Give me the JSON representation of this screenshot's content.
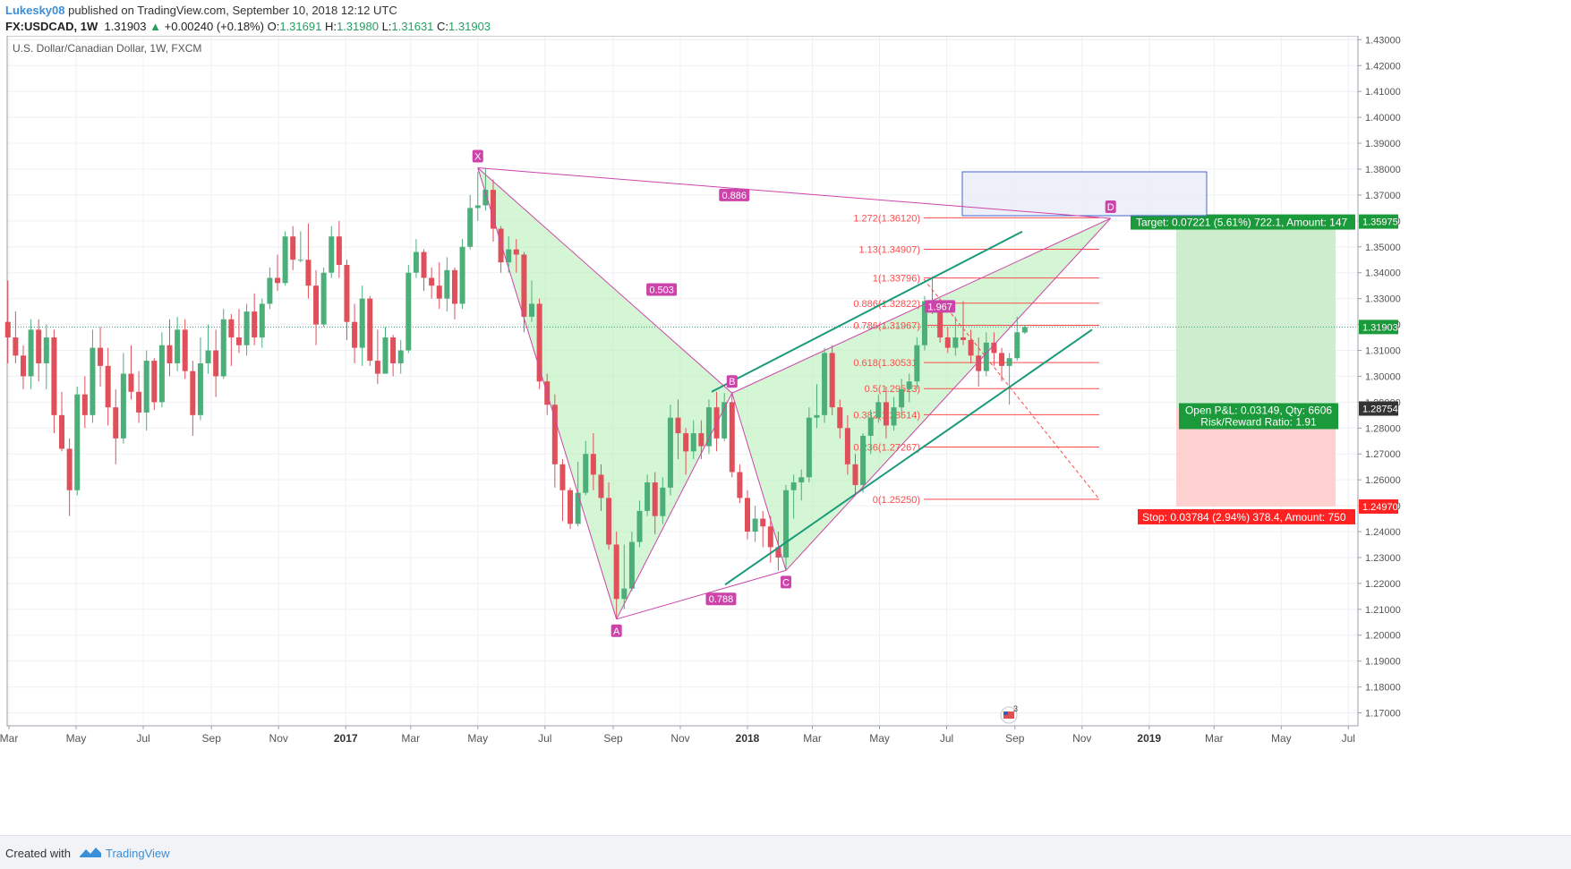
{
  "header": {
    "user": "Lukesky08",
    "published": "published on TradingView.com, September 10, 2018 12:12 UTC",
    "symbol": "FX:USDCAD, 1W",
    "last": "1.31903",
    "change": "+0.00240 (+0.18%)",
    "o_label": "O:",
    "o": "1.31691",
    "h_label": "H:",
    "h": "1.31980",
    "l_label": "L:",
    "l": "1.31631",
    "c_label": "C:",
    "c": "1.31903"
  },
  "footer": {
    "created_with": "Created with",
    "brand": "TradingView"
  },
  "colors": {
    "up": "#4caf7a",
    "down": "#e0505a",
    "pattern": "#cc44aa",
    "fib": "#ff4a4a",
    "channel": "#1a9a7a",
    "target": "#1a9a3a",
    "stop": "#ff2222"
  },
  "chart_data": {
    "type": "candlestick",
    "title": "U.S. Dollar/Canadian Dollar, 1W, FXCM",
    "ylim": [
      1.165,
      1.4315
    ],
    "y_ticks": [
      "1.43000",
      "1.42000",
      "1.41000",
      "1.40000",
      "1.39000",
      "1.38000",
      "1.37000",
      "1.36000",
      "1.35000",
      "1.34000",
      "1.33000",
      "1.32000",
      "1.31000",
      "1.30000",
      "1.29000",
      "1.28000",
      "1.27000",
      "1.26000",
      "1.25000",
      "1.24000",
      "1.23000",
      "1.22000",
      "1.21000",
      "1.20000",
      "1.19000",
      "1.18000",
      "1.17000"
    ],
    "x_ticks": [
      {
        "label": "Mar",
        "x": "2016-03"
      },
      {
        "label": "May",
        "x": "2016-05"
      },
      {
        "label": "Jul",
        "x": "2016-07"
      },
      {
        "label": "Sep",
        "x": "2016-09"
      },
      {
        "label": "Nov",
        "x": "2016-11"
      },
      {
        "label": "2017",
        "x": "2017-01"
      },
      {
        "label": "Mar",
        "x": "2017-03"
      },
      {
        "label": "May",
        "x": "2017-05"
      },
      {
        "label": "Jul",
        "x": "2017-07"
      },
      {
        "label": "Sep",
        "x": "2017-09"
      },
      {
        "label": "Nov",
        "x": "2017-11"
      },
      {
        "label": "2018",
        "x": "2018-01"
      },
      {
        "label": "Mar",
        "x": "2018-03"
      },
      {
        "label": "May",
        "x": "2018-05"
      },
      {
        "label": "Jul",
        "x": "2018-07"
      },
      {
        "label": "Sep",
        "x": "2018-09"
      },
      {
        "label": "Nov",
        "x": "2018-11"
      },
      {
        "label": "2019",
        "x": "2019-01"
      },
      {
        "label": "Mar",
        "x": "2019-03"
      },
      {
        "label": "May",
        "x": "2019-05"
      },
      {
        "label": "Jul",
        "x": "2019-07"
      }
    ],
    "price_labels": [
      {
        "value": 1.35975,
        "text": "1.35975",
        "color": "#1a9a3a"
      },
      {
        "value": 1.31903,
        "text": "1.31903",
        "color": "#1a9a3a"
      },
      {
        "value": 1.28754,
        "text": "1.28754",
        "color": "#333333"
      },
      {
        "value": 1.2497,
        "text": "1.24970",
        "color": "#ff2222"
      }
    ],
    "last_price": 1.31903,
    "pattern": {
      "points": [
        {
          "label": "X",
          "date": "2017-05-01",
          "price": 1.3805
        },
        {
          "label": "A",
          "date": "2017-09-04",
          "price": 1.2062
        },
        {
          "label": "B",
          "date": "2017-12-18",
          "price": 1.2935
        },
        {
          "label": "C",
          "date": "2018-02-05",
          "price": 1.225
        },
        {
          "label": "D",
          "date": "2018-11-27",
          "price": 1.361
        }
      ],
      "ratios": [
        {
          "text": "0.886",
          "date": "2017-12-20",
          "price": 1.37
        },
        {
          "text": "0.503",
          "date": "2017-10-15",
          "price": 1.3335
        },
        {
          "text": "0.788",
          "date": "2017-12-08",
          "price": 1.214
        },
        {
          "text": "1.967",
          "date": "2018-06-25",
          "price": 1.327
        }
      ]
    },
    "fib_levels": [
      {
        "text": "1.272(1.36120)",
        "price": 1.3612
      },
      {
        "text": "1.13(1.34907)",
        "price": 1.34907
      },
      {
        "text": "1(1.33796)",
        "price": 1.33796
      },
      {
        "text": "0.886(1.32822)",
        "price": 1.32822
      },
      {
        "text": "0.786(1.31967)",
        "price": 1.31967
      },
      {
        "text": "0.618(1.30531)",
        "price": 1.30531
      },
      {
        "text": "0.5(1.29523)",
        "price": 1.29523
      },
      {
        "text": "0.382(1.28514)",
        "price": 1.28514
      },
      {
        "text": "0.236(1.27267)",
        "price": 1.27267
      },
      {
        "text": "0(1.25250)",
        "price": 1.2525
      }
    ],
    "position": {
      "entry": 1.28754,
      "target": 1.35975,
      "stop": 1.2497,
      "target_text": "Target: 0.07221 (5.61%) 722.1, Amount: 147",
      "stop_text": "Stop: 0.03784 (2.94%) 378.4, Amount: 750",
      "pnl_text": "Open P&L: 0.03149, Qty: 6606",
      "rr_text": "Risk/Reward Ratio: 1.91"
    },
    "event_badge": "3",
    "candles": [
      [
        "2016-02-29",
        1.321,
        1.337,
        1.305,
        1.315
      ],
      [
        "2016-03-07",
        1.315,
        1.325,
        1.305,
        1.308
      ],
      [
        "2016-03-14",
        1.308,
        1.312,
        1.295,
        1.3
      ],
      [
        "2016-03-21",
        1.3,
        1.322,
        1.295,
        1.318
      ],
      [
        "2016-03-28",
        1.318,
        1.322,
        1.298,
        1.305
      ],
      [
        "2016-04-04",
        1.305,
        1.32,
        1.295,
        1.315
      ],
      [
        "2016-04-11",
        1.315,
        1.318,
        1.278,
        1.285
      ],
      [
        "2016-04-18",
        1.285,
        1.294,
        1.271,
        1.272
      ],
      [
        "2016-04-25",
        1.272,
        1.276,
        1.246,
        1.256
      ],
      [
        "2016-05-02",
        1.256,
        1.296,
        1.254,
        1.293
      ],
      [
        "2016-05-09",
        1.293,
        1.3,
        1.28,
        1.285
      ],
      [
        "2016-05-16",
        1.285,
        1.318,
        1.282,
        1.311
      ],
      [
        "2016-05-23",
        1.311,
        1.319,
        1.296,
        1.304
      ],
      [
        "2016-05-30",
        1.304,
        1.311,
        1.281,
        1.288
      ],
      [
        "2016-06-06",
        1.288,
        1.295,
        1.266,
        1.276
      ],
      [
        "2016-06-13",
        1.276,
        1.309,
        1.274,
        1.301
      ],
      [
        "2016-06-20",
        1.301,
        1.312,
        1.291,
        1.294
      ],
      [
        "2016-06-27",
        1.294,
        1.302,
        1.282,
        1.286
      ],
      [
        "2016-07-04",
        1.286,
        1.31,
        1.279,
        1.306
      ],
      [
        "2016-07-11",
        1.306,
        1.307,
        1.287,
        1.29
      ],
      [
        "2016-07-18",
        1.29,
        1.317,
        1.288,
        1.312
      ],
      [
        "2016-07-25",
        1.312,
        1.322,
        1.3,
        1.305
      ],
      [
        "2016-08-01",
        1.305,
        1.323,
        1.302,
        1.318
      ],
      [
        "2016-08-08",
        1.318,
        1.322,
        1.299,
        1.302
      ],
      [
        "2016-08-15",
        1.302,
        1.306,
        1.277,
        1.285
      ],
      [
        "2016-08-22",
        1.285,
        1.315,
        1.283,
        1.305
      ],
      [
        "2016-08-29",
        1.305,
        1.32,
        1.301,
        1.31
      ],
      [
        "2016-09-05",
        1.31,
        1.318,
        1.292,
        1.3
      ],
      [
        "2016-09-12",
        1.3,
        1.326,
        1.299,
        1.322
      ],
      [
        "2016-09-19",
        1.322,
        1.324,
        1.304,
        1.315
      ],
      [
        "2016-09-26",
        1.315,
        1.326,
        1.309,
        1.312
      ],
      [
        "2016-10-03",
        1.312,
        1.328,
        1.308,
        1.325
      ],
      [
        "2016-10-10",
        1.325,
        1.332,
        1.312,
        1.315
      ],
      [
        "2016-10-17",
        1.315,
        1.33,
        1.311,
        1.328
      ],
      [
        "2016-10-24",
        1.328,
        1.342,
        1.326,
        1.338
      ],
      [
        "2016-10-31",
        1.338,
        1.347,
        1.333,
        1.336
      ],
      [
        "2016-11-07",
        1.336,
        1.356,
        1.335,
        1.354
      ],
      [
        "2016-11-14",
        1.354,
        1.358,
        1.341,
        1.345
      ],
      [
        "2016-11-21",
        1.345,
        1.356,
        1.344,
        1.345
      ],
      [
        "2016-11-28",
        1.345,
        1.359,
        1.33,
        1.335
      ],
      [
        "2016-12-05",
        1.335,
        1.341,
        1.312,
        1.32
      ],
      [
        "2016-12-12",
        1.32,
        1.342,
        1.319,
        1.34
      ],
      [
        "2016-12-19",
        1.34,
        1.358,
        1.338,
        1.354
      ],
      [
        "2016-12-26",
        1.354,
        1.36,
        1.338,
        1.343
      ],
      [
        "2017-01-02",
        1.343,
        1.345,
        1.314,
        1.321
      ],
      [
        "2017-01-09",
        1.321,
        1.328,
        1.305,
        1.311
      ],
      [
        "2017-01-16",
        1.311,
        1.335,
        1.304,
        1.33
      ],
      [
        "2017-01-23",
        1.33,
        1.331,
        1.304,
        1.306
      ],
      [
        "2017-01-30",
        1.306,
        1.318,
        1.297,
        1.301
      ],
      [
        "2017-02-06",
        1.301,
        1.319,
        1.301,
        1.315
      ],
      [
        "2017-02-13",
        1.315,
        1.316,
        1.3,
        1.305
      ],
      [
        "2017-02-20",
        1.305,
        1.314,
        1.301,
        1.31
      ],
      [
        "2017-02-27",
        1.31,
        1.343,
        1.309,
        1.34
      ],
      [
        "2017-03-06",
        1.34,
        1.353,
        1.338,
        1.348
      ],
      [
        "2017-03-13",
        1.348,
        1.349,
        1.333,
        1.338
      ],
      [
        "2017-03-20",
        1.338,
        1.342,
        1.33,
        1.335
      ],
      [
        "2017-03-27",
        1.335,
        1.344,
        1.326,
        1.33
      ],
      [
        "2017-04-03",
        1.33,
        1.346,
        1.325,
        1.341
      ],
      [
        "2017-04-10",
        1.341,
        1.342,
        1.322,
        1.328
      ],
      [
        "2017-04-17",
        1.328,
        1.353,
        1.326,
        1.35
      ],
      [
        "2017-04-24",
        1.35,
        1.37,
        1.349,
        1.365
      ],
      [
        "2017-05-01",
        1.365,
        1.379,
        1.36,
        1.366
      ],
      [
        "2017-05-08",
        1.366,
        1.3805,
        1.364,
        1.372
      ],
      [
        "2017-05-15",
        1.372,
        1.376,
        1.352,
        1.357
      ],
      [
        "2017-05-22",
        1.357,
        1.358,
        1.34,
        1.344
      ],
      [
        "2017-05-29",
        1.344,
        1.354,
        1.34,
        1.349
      ],
      [
        "2017-06-05",
        1.349,
        1.353,
        1.34,
        1.347
      ],
      [
        "2017-06-12",
        1.347,
        1.348,
        1.317,
        1.323
      ],
      [
        "2017-06-19",
        1.323,
        1.337,
        1.321,
        1.328
      ],
      [
        "2017-06-26",
        1.328,
        1.33,
        1.295,
        1.298
      ],
      [
        "2017-07-03",
        1.298,
        1.301,
        1.285,
        1.289
      ],
      [
        "2017-07-10",
        1.289,
        1.293,
        1.257,
        1.266
      ],
      [
        "2017-07-17",
        1.266,
        1.268,
        1.244,
        1.256
      ],
      [
        "2017-07-24",
        1.256,
        1.257,
        1.241,
        1.243
      ],
      [
        "2017-07-31",
        1.243,
        1.267,
        1.242,
        1.255
      ],
      [
        "2017-08-07",
        1.255,
        1.275,
        1.254,
        1.27
      ],
      [
        "2017-08-14",
        1.27,
        1.278,
        1.256,
        1.262
      ],
      [
        "2017-08-21",
        1.262,
        1.266,
        1.248,
        1.253
      ],
      [
        "2017-08-28",
        1.253,
        1.259,
        1.233,
        1.235
      ],
      [
        "2017-09-04",
        1.235,
        1.24,
        1.2062,
        1.214
      ],
      [
        "2017-09-11",
        1.214,
        1.235,
        1.21,
        1.218
      ],
      [
        "2017-09-18",
        1.218,
        1.24,
        1.217,
        1.236
      ],
      [
        "2017-09-25",
        1.236,
        1.252,
        1.234,
        1.248
      ],
      [
        "2017-10-02",
        1.248,
        1.262,
        1.246,
        1.259
      ],
      [
        "2017-10-09",
        1.259,
        1.263,
        1.239,
        1.246
      ],
      [
        "2017-10-16",
        1.246,
        1.261,
        1.243,
        1.257
      ],
      [
        "2017-10-23",
        1.257,
        1.289,
        1.254,
        1.284
      ],
      [
        "2017-10-30",
        1.284,
        1.291,
        1.268,
        1.278
      ],
      [
        "2017-11-06",
        1.278,
        1.28,
        1.262,
        1.271
      ],
      [
        "2017-11-13",
        1.271,
        1.283,
        1.268,
        1.278
      ],
      [
        "2017-11-20",
        1.278,
        1.283,
        1.268,
        1.273
      ],
      [
        "2017-11-27",
        1.273,
        1.291,
        1.27,
        1.288
      ],
      [
        "2017-12-04",
        1.288,
        1.294,
        1.271,
        1.276
      ],
      [
        "2017-12-11",
        1.276,
        1.2935,
        1.275,
        1.29
      ],
      [
        "2017-12-18",
        1.29,
        1.293,
        1.261,
        1.263
      ],
      [
        "2017-12-25",
        1.263,
        1.266,
        1.251,
        1.253
      ],
      [
        "2018-01-01",
        1.253,
        1.256,
        1.237,
        1.24
      ],
      [
        "2018-01-08",
        1.24,
        1.25,
        1.236,
        1.245
      ],
      [
        "2018-01-15",
        1.245,
        1.248,
        1.234,
        1.242
      ],
      [
        "2018-01-22",
        1.242,
        1.246,
        1.228,
        1.234
      ],
      [
        "2018-01-29",
        1.234,
        1.24,
        1.225,
        1.23
      ],
      [
        "2018-02-05",
        1.23,
        1.258,
        1.225,
        1.256
      ],
      [
        "2018-02-12",
        1.256,
        1.262,
        1.245,
        1.259
      ],
      [
        "2018-02-19",
        1.259,
        1.264,
        1.252,
        1.261
      ],
      [
        "2018-02-26",
        1.261,
        1.288,
        1.259,
        1.284
      ],
      [
        "2018-03-05",
        1.284,
        1.297,
        1.28,
        1.285
      ],
      [
        "2018-03-12",
        1.285,
        1.311,
        1.282,
        1.309
      ],
      [
        "2018-03-19",
        1.309,
        1.312,
        1.285,
        1.288
      ],
      [
        "2018-03-26",
        1.288,
        1.291,
        1.276,
        1.28
      ],
      [
        "2018-04-02",
        1.28,
        1.285,
        1.262,
        1.266
      ],
      [
        "2018-04-09",
        1.266,
        1.27,
        1.254,
        1.258
      ],
      [
        "2018-04-16",
        1.258,
        1.278,
        1.255,
        1.277
      ],
      [
        "2018-04-23",
        1.277,
        1.287,
        1.27,
        1.284
      ],
      [
        "2018-04-30",
        1.284,
        1.293,
        1.282,
        1.29
      ],
      [
        "2018-05-07",
        1.29,
        1.296,
        1.276,
        1.281
      ],
      [
        "2018-05-14",
        1.281,
        1.292,
        1.279,
        1.288
      ],
      [
        "2018-05-21",
        1.288,
        1.299,
        1.284,
        1.295
      ],
      [
        "2018-05-28",
        1.295,
        1.301,
        1.29,
        1.298
      ],
      [
        "2018-06-04",
        1.298,
        1.315,
        1.295,
        1.312
      ],
      [
        "2018-06-11",
        1.312,
        1.331,
        1.31,
        1.329
      ],
      [
        "2018-06-18",
        1.329,
        1.3386,
        1.324,
        1.326
      ],
      [
        "2018-06-25",
        1.326,
        1.33,
        1.313,
        1.315
      ],
      [
        "2018-07-02",
        1.315,
        1.319,
        1.309,
        1.311
      ],
      [
        "2018-07-09",
        1.311,
        1.323,
        1.308,
        1.315
      ],
      [
        "2018-07-16",
        1.315,
        1.329,
        1.312,
        1.314
      ],
      [
        "2018-07-23",
        1.314,
        1.318,
        1.305,
        1.308
      ],
      [
        "2018-07-30",
        1.308,
        1.315,
        1.296,
        1.302
      ],
      [
        "2018-08-06",
        1.302,
        1.317,
        1.3,
        1.313
      ],
      [
        "2018-08-13",
        1.313,
        1.317,
        1.304,
        1.309
      ],
      [
        "2018-08-20",
        1.309,
        1.311,
        1.298,
        1.304
      ],
      [
        "2018-08-27",
        1.304,
        1.309,
        1.289,
        1.307
      ],
      [
        "2018-09-03",
        1.307,
        1.323,
        1.306,
        1.317
      ],
      [
        "2018-09-10",
        1.3169,
        1.3198,
        1.3163,
        1.319
      ]
    ]
  }
}
